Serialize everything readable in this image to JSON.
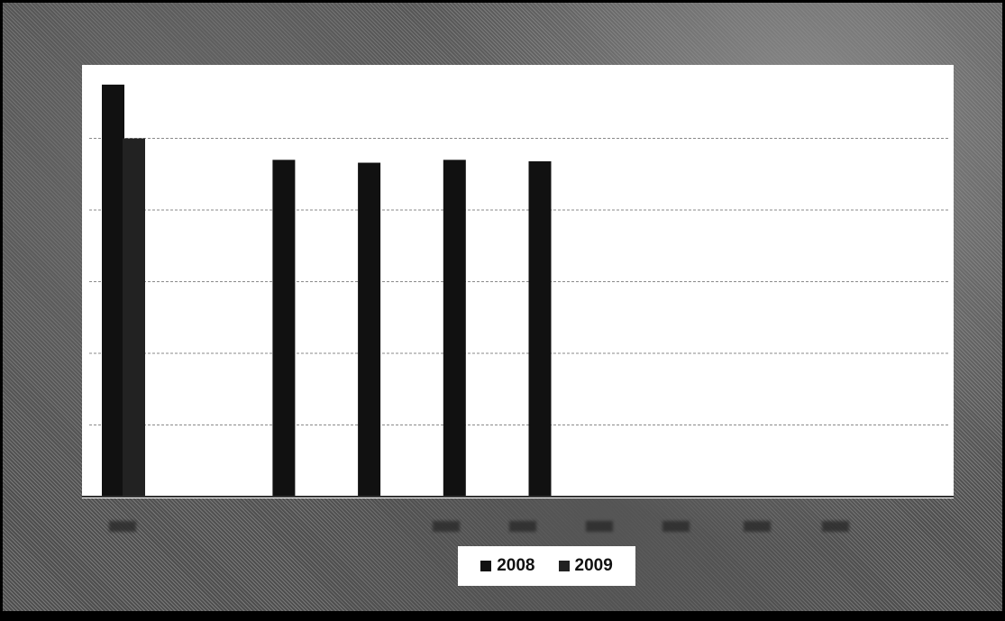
{
  "chart_data": {
    "type": "bar",
    "title": "",
    "xlabel": "",
    "ylabel": "",
    "ylim": [
      0,
      6
    ],
    "grid": true,
    "legend_position": "bottom",
    "categories": [
      "",
      "",
      "",
      "",
      "",
      "",
      "",
      "",
      "",
      ""
    ],
    "series": [
      {
        "name": "2008",
        "color": "#111111",
        "values": [
          5.75,
          null,
          4.7,
          4.66,
          4.7,
          4.68,
          null,
          null,
          null,
          null
        ]
      },
      {
        "name": "2009",
        "color": "#222222",
        "values": [
          5.0,
          null,
          null,
          null,
          null,
          null,
          null,
          null,
          null,
          null
        ]
      }
    ]
  }
}
